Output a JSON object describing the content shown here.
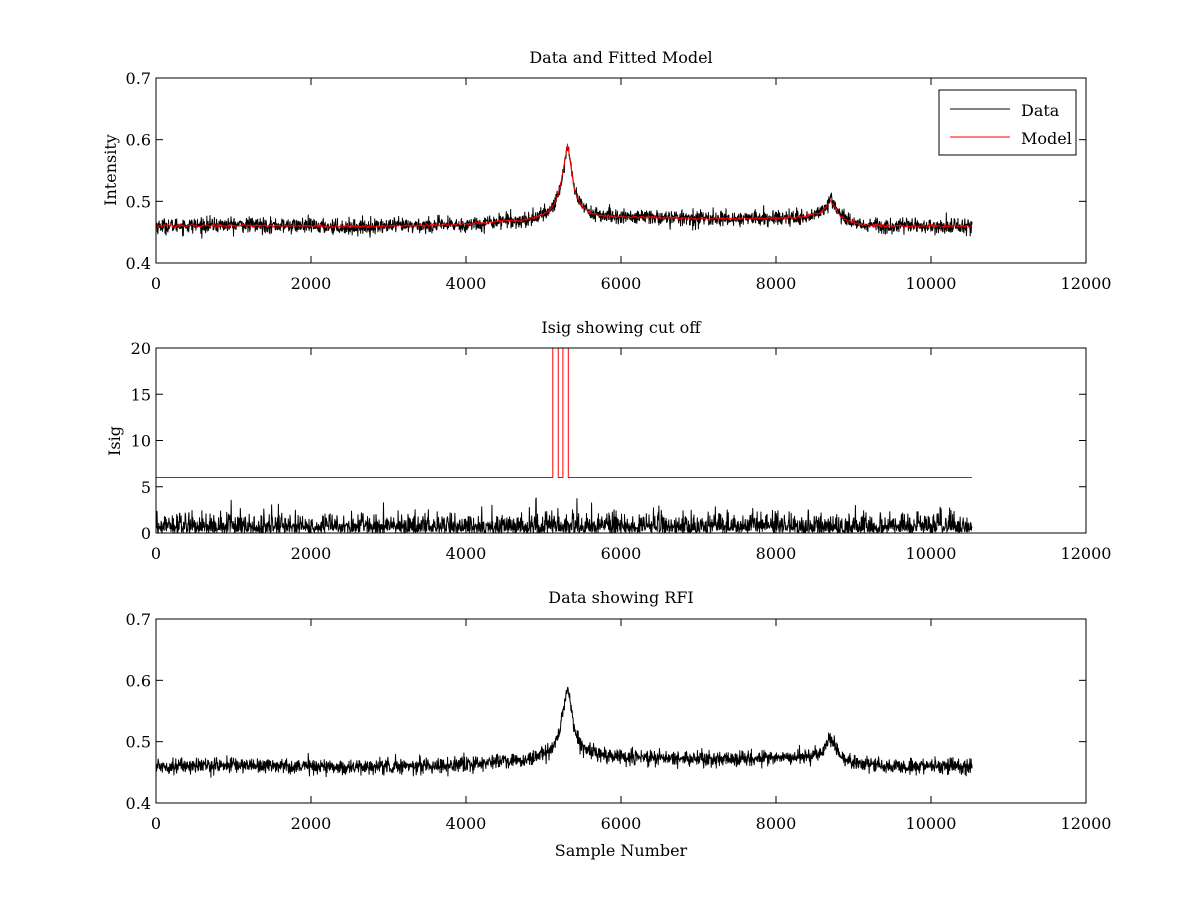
{
  "chart_data": [
    {
      "type": "line",
      "title": "Data and Fitted Model",
      "xlabel": "",
      "ylabel": "Intensity",
      "xlim": [
        0,
        12000
      ],
      "ylim": [
        0.4,
        0.7
      ],
      "xticks": [
        0,
        2000,
        4000,
        6000,
        8000,
        10000,
        12000
      ],
      "xtick_labels": [
        "0",
        "2000",
        "4000",
        "6000",
        "8000",
        "10000",
        "12000"
      ],
      "yticks": [
        0.4,
        0.5,
        0.6,
        0.7
      ],
      "ytick_labels": [
        "0.4",
        "0.5",
        "0.6",
        "0.7"
      ],
      "legend": {
        "position": "top-right",
        "entries": [
          "Data",
          "Model"
        ]
      },
      "series": [
        {
          "name": "Data",
          "color": "#000000",
          "kind": "noisy",
          "noise": 0.006,
          "x": [
            0,
            1000,
            2000,
            2500,
            3000,
            3500,
            4000,
            4300,
            4500,
            4700,
            4900,
            5050,
            5150,
            5220,
            5270,
            5310,
            5350,
            5400,
            5480,
            5600,
            5800,
            6000,
            6500,
            7000,
            7500,
            8000,
            8300,
            8550,
            8650,
            8700,
            8750,
            8800,
            8900,
            9100,
            9500,
            10000,
            10530
          ],
          "values": [
            0.46,
            0.462,
            0.46,
            0.458,
            0.46,
            0.461,
            0.462,
            0.466,
            0.47,
            0.468,
            0.474,
            0.482,
            0.497,
            0.525,
            0.56,
            0.592,
            0.56,
            0.52,
            0.495,
            0.482,
            0.476,
            0.475,
            0.474,
            0.472,
            0.472,
            0.473,
            0.474,
            0.48,
            0.492,
            0.505,
            0.498,
            0.483,
            0.47,
            0.463,
            0.46,
            0.46,
            0.459
          ]
        },
        {
          "name": "Model",
          "color": "#ff0000",
          "kind": "smooth",
          "x": [
            0,
            1000,
            2000,
            2500,
            3000,
            3500,
            4000,
            4300,
            4500,
            4700,
            4900,
            5050,
            5150,
            5220,
            5270,
            5310,
            5350,
            5400,
            5480,
            5600,
            5800,
            6000,
            6500,
            7000,
            7500,
            8000,
            8300,
            8550,
            8650,
            8700,
            8750,
            8800,
            8900,
            9100,
            9500,
            10000,
            10530
          ],
          "values": [
            0.46,
            0.461,
            0.46,
            0.459,
            0.46,
            0.461,
            0.463,
            0.466,
            0.469,
            0.468,
            0.474,
            0.482,
            0.497,
            0.525,
            0.562,
            0.592,
            0.56,
            0.518,
            0.494,
            0.481,
            0.476,
            0.475,
            0.474,
            0.472,
            0.472,
            0.473,
            0.474,
            0.48,
            0.49,
            0.5,
            0.494,
            0.481,
            0.469,
            0.462,
            0.46,
            0.46,
            0.46
          ]
        }
      ]
    },
    {
      "type": "line",
      "title": "Isig showing cut off",
      "xlabel": "",
      "ylabel": "Isig",
      "xlim": [
        0,
        12000
      ],
      "ylim": [
        0,
        20
      ],
      "xticks": [
        0,
        2000,
        4000,
        6000,
        8000,
        10000,
        12000
      ],
      "xtick_labels": [
        "0",
        "2000",
        "4000",
        "6000",
        "8000",
        "10000",
        "12000"
      ],
      "yticks": [
        0,
        5,
        10,
        15,
        20
      ],
      "ytick_labels": [
        "0",
        "5",
        "10",
        "15",
        "20"
      ],
      "series": [
        {
          "name": "Isig",
          "color": "#000000",
          "kind": "spiky",
          "x": [
            0,
            10530
          ],
          "values": [
            1.0,
            1.0
          ],
          "spike_max": 4.0
        },
        {
          "name": "Cut off",
          "color": "#ff0000",
          "kind": "step",
          "x": [
            0,
            5120,
            5120,
            5190,
            5190,
            5250,
            5250,
            5320,
            5320,
            5380,
            5380,
            10530
          ],
          "values": [
            6,
            6,
            20,
            20,
            6,
            6,
            20,
            20,
            6,
            6,
            6,
            6
          ]
        }
      ]
    },
    {
      "type": "line",
      "title": "Data showing RFI",
      "xlabel": "Sample Number",
      "ylabel": "",
      "xlim": [
        0,
        12000
      ],
      "ylim": [
        0.4,
        0.7
      ],
      "xticks": [
        0,
        2000,
        4000,
        6000,
        8000,
        10000,
        12000
      ],
      "xtick_labels": [
        "0",
        "2000",
        "4000",
        "6000",
        "8000",
        "10000",
        "12000"
      ],
      "yticks": [
        0.4,
        0.5,
        0.6,
        0.7
      ],
      "ytick_labels": [
        "0.4",
        "0.5",
        "0.6",
        "0.7"
      ],
      "series": [
        {
          "name": "Data",
          "color": "#000000",
          "kind": "noisy",
          "noise": 0.006,
          "x": [
            0,
            1000,
            2000,
            2500,
            3000,
            3500,
            4000,
            4300,
            4500,
            4700,
            4900,
            5050,
            5150,
            5220,
            5270,
            5310,
            5350,
            5400,
            5480,
            5600,
            5800,
            6000,
            6500,
            7000,
            7500,
            8000,
            8300,
            8550,
            8650,
            8700,
            8750,
            8800,
            8900,
            9100,
            9500,
            10000,
            10530
          ],
          "values": [
            0.46,
            0.462,
            0.46,
            0.458,
            0.46,
            0.461,
            0.462,
            0.466,
            0.47,
            0.468,
            0.474,
            0.482,
            0.497,
            0.525,
            0.56,
            0.592,
            0.56,
            0.52,
            0.495,
            0.482,
            0.476,
            0.475,
            0.474,
            0.472,
            0.472,
            0.473,
            0.474,
            0.48,
            0.492,
            0.505,
            0.498,
            0.483,
            0.47,
            0.463,
            0.46,
            0.46,
            0.459
          ]
        }
      ]
    }
  ]
}
